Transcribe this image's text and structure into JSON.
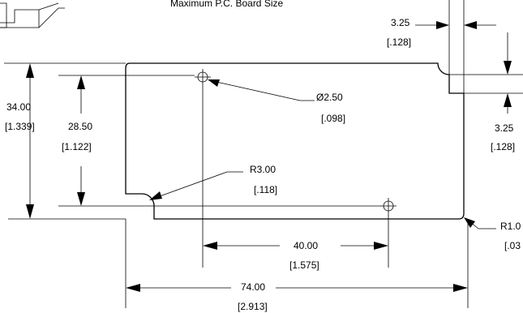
{
  "title": "Maximum P.C. Board Size",
  "dimensions": {
    "notch_width": {
      "mm": "3.25",
      "in": "[.128]"
    },
    "notch_height": {
      "mm": "3.25",
      "in": "[.128]"
    },
    "overall_height": {
      "mm": "34.00",
      "in": "[1.339]"
    },
    "hole_height": {
      "mm": "28.50",
      "in": "[1.122]"
    },
    "hole_diameter": {
      "mm": "Ø2.50",
      "in": "[.098]"
    },
    "notch_radius": {
      "mm": "R3.00",
      "in": "[.118]"
    },
    "corner_radius": {
      "mm": "R1.0",
      "in": "[.03"
    },
    "hole_spacing": {
      "mm": "40.00",
      "in": "[1.575]"
    },
    "overall_width": {
      "mm": "74.00",
      "in": "[2.913]"
    }
  }
}
